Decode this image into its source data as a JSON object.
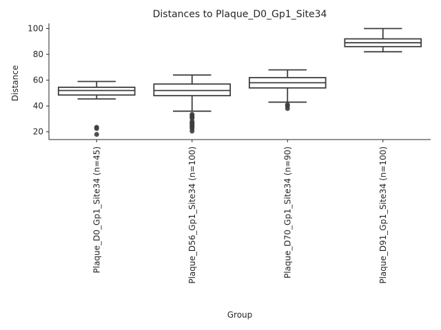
{
  "chart_data": {
    "type": "box",
    "title": "Distances to Plaque_D0_Gp1_Site34",
    "xlabel": "Group",
    "ylabel": "Distance",
    "ylim": [
      14,
      104
    ],
    "yticks": [
      20,
      40,
      60,
      80,
      100
    ],
    "grid": false,
    "categories": [
      "Plaque_D0_Gp1_Site34 (n=45)",
      "Plaque_D56_Gp1_Site34 (n=100)",
      "Plaque_D70_Gp1_Site34 (n=90)",
      "Plaque_D91_Gp1_Site34 (n=100)"
    ],
    "boxes": [
      {
        "color": "#3274a1",
        "whisker_low": 45.5,
        "q1": 48.5,
        "median": 52,
        "q3": 54.5,
        "whisker_high": 59,
        "outliers": [
          18,
          22.5,
          23.5
        ]
      },
      {
        "color": "#e1812c",
        "whisker_low": 36,
        "q1": 48,
        "median": 52,
        "q3": 57,
        "whisker_high": 64,
        "outliers": [
          20.5,
          22.5,
          23.5,
          24.5,
          25.5,
          26.5,
          27,
          28,
          30.5,
          31.5,
          32.5,
          33.5
        ]
      },
      {
        "color": "#3a923a",
        "whisker_low": 43,
        "q1": 54,
        "median": 58,
        "q3": 62,
        "whisker_high": 68,
        "outliers": [
          38,
          40,
          41
        ]
      },
      {
        "color": "#c03d3e",
        "whisker_low": 82,
        "q1": 86,
        "median": 89,
        "q3": 92,
        "whisker_high": 100,
        "outliers": []
      }
    ]
  }
}
